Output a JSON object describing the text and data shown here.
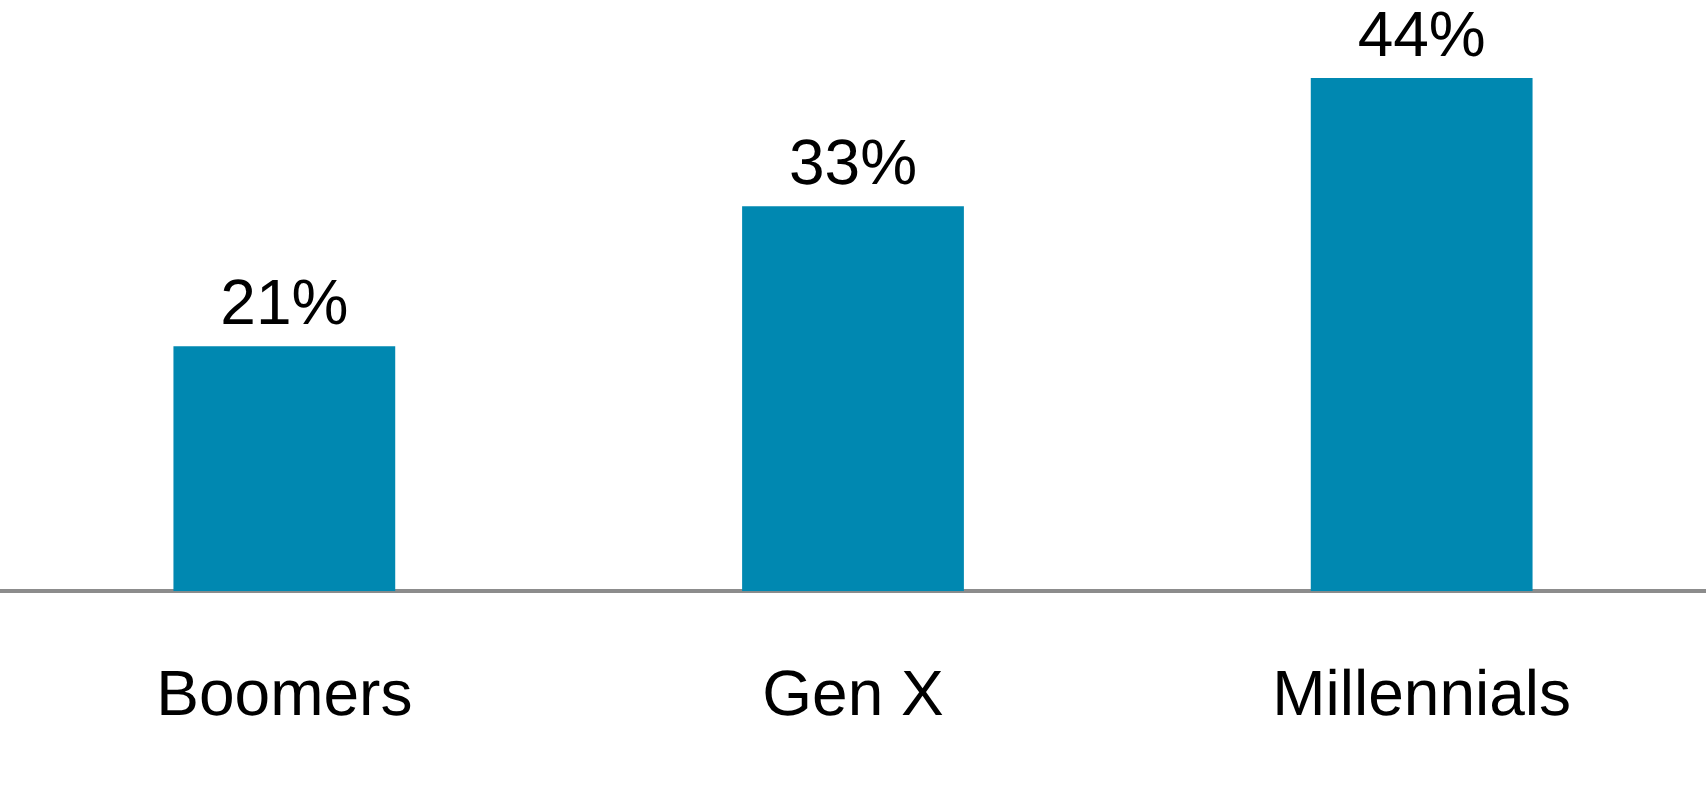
{
  "chart_data": {
    "type": "bar",
    "categories": [
      "Boomers",
      "Gen X",
      "Millennials"
    ],
    "values": [
      21,
      33,
      44
    ],
    "color": "#0088b1",
    "data_labels": true,
    "value_labels": [
      "21%",
      "33%",
      "44%"
    ],
    "grid": false,
    "legend": false
  }
}
